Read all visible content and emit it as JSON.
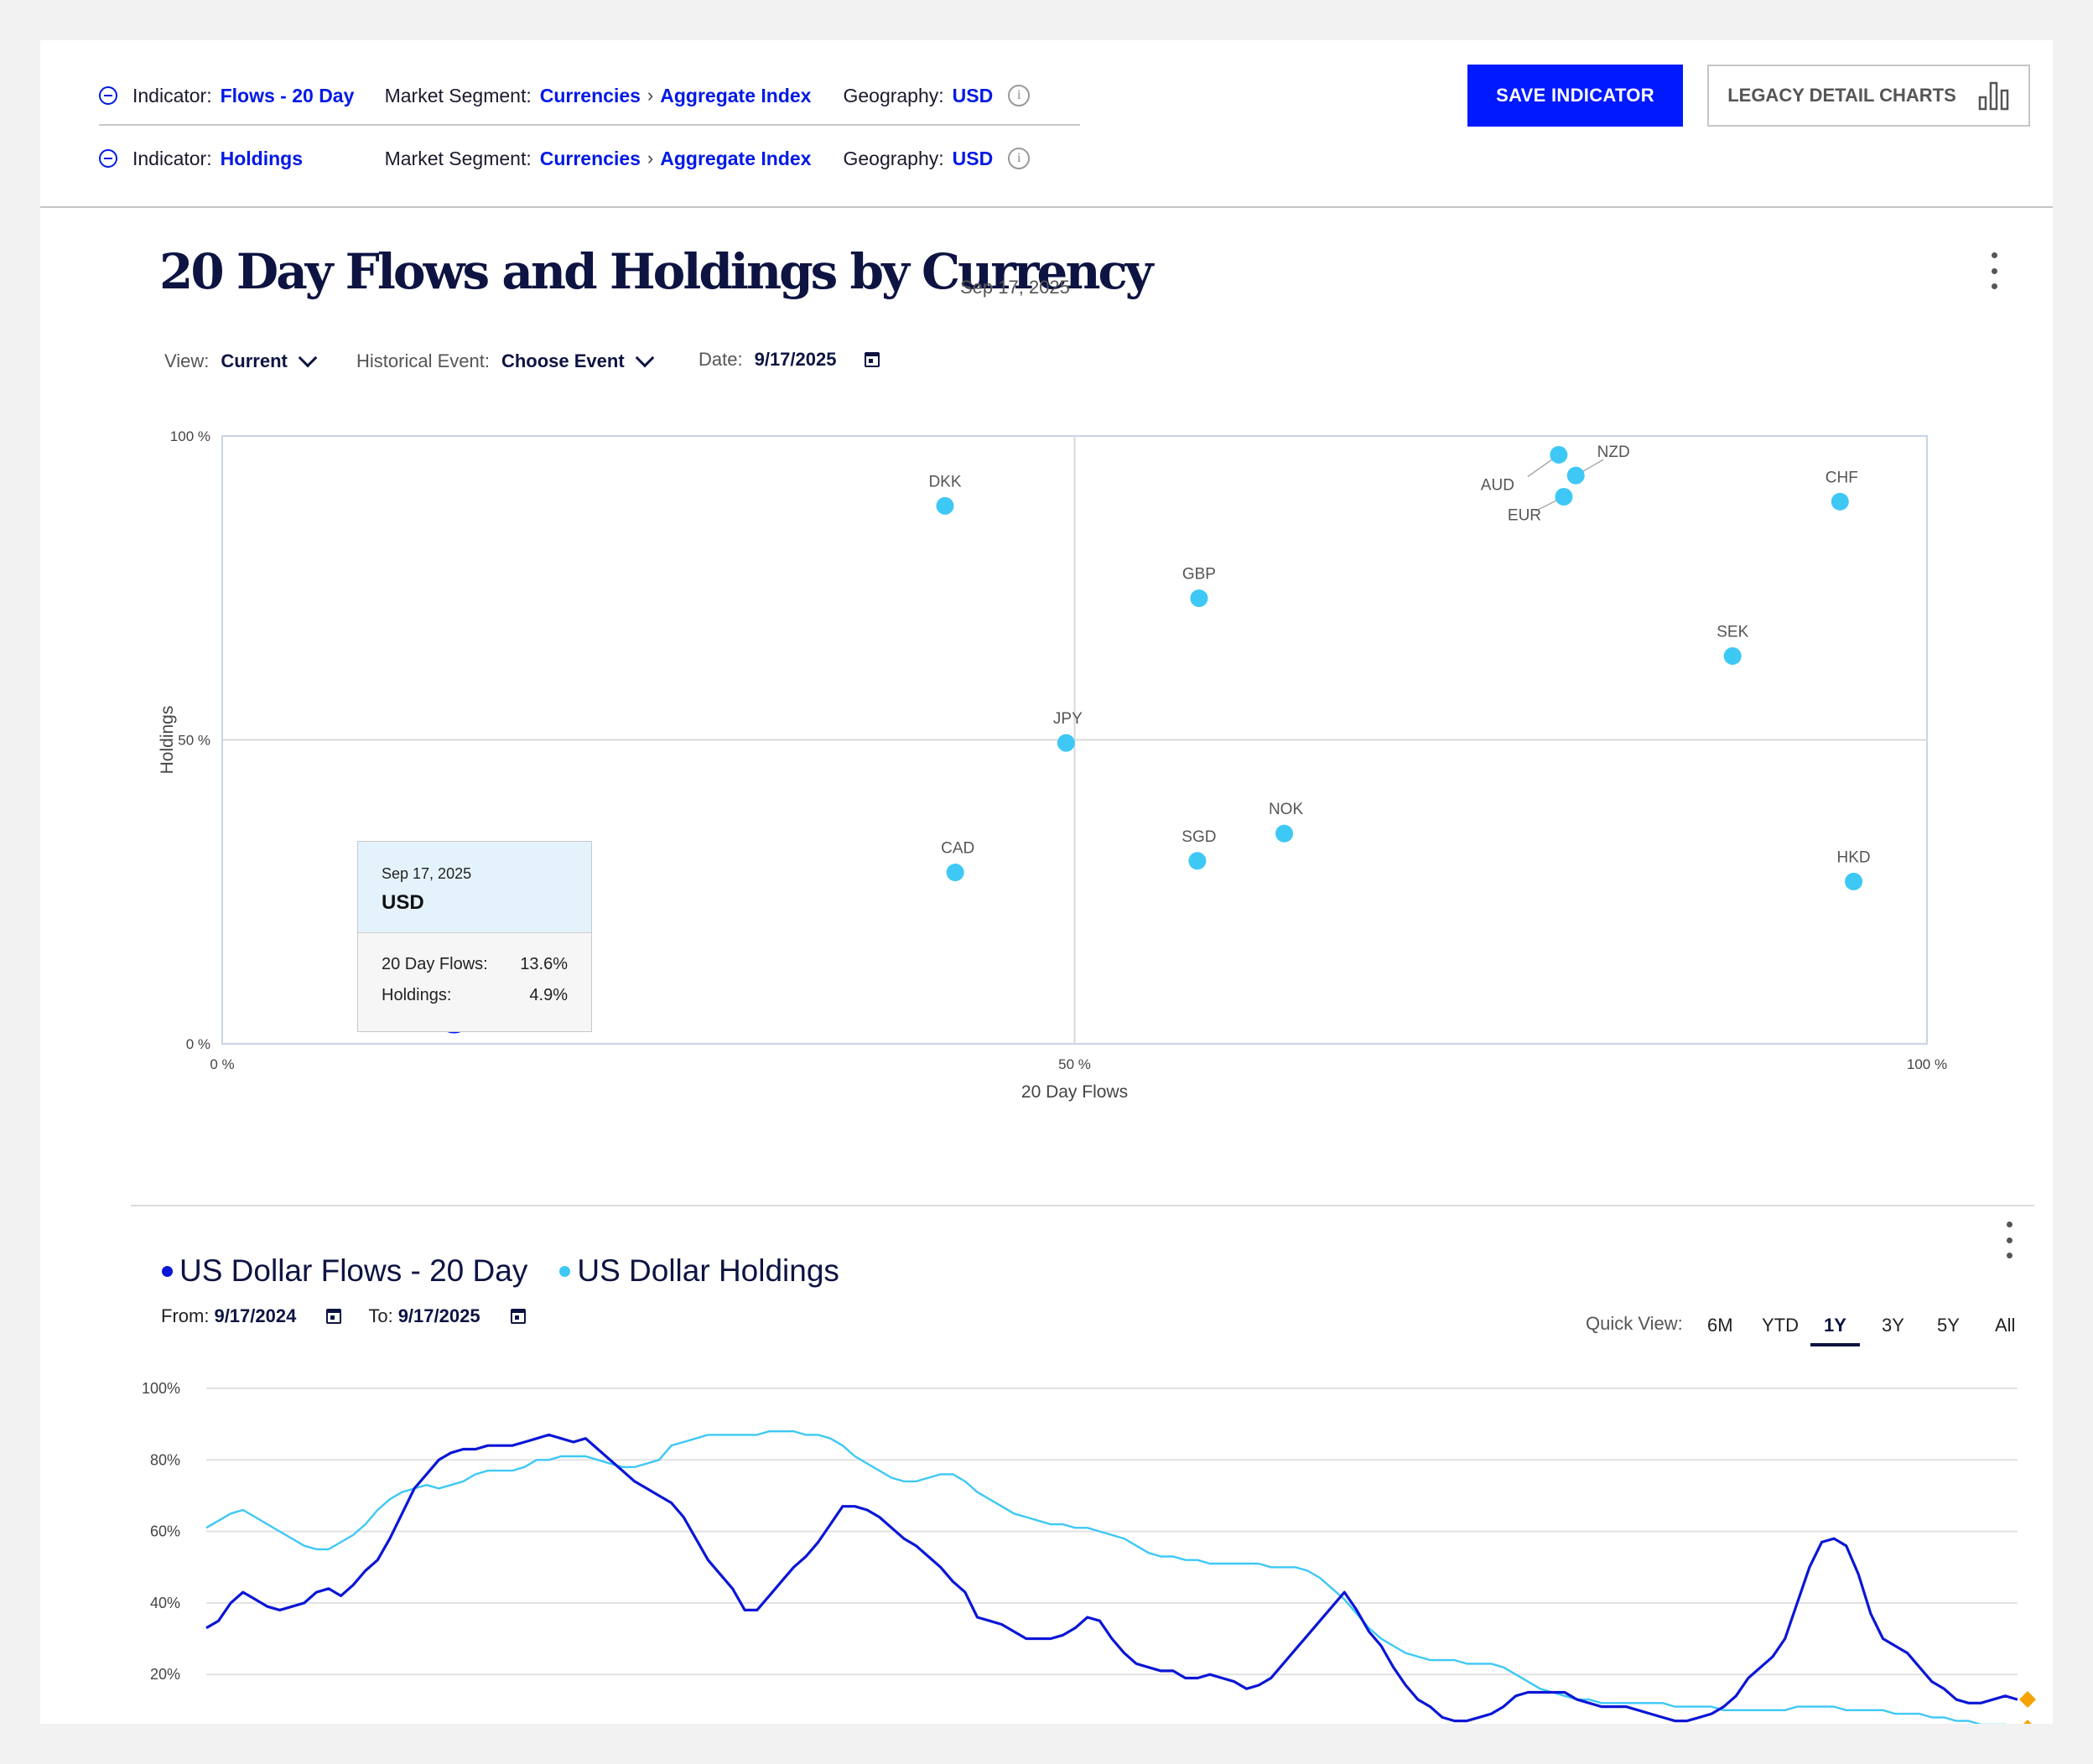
{
  "indicators": [
    {
      "indicator_label": "Indicator:",
      "indicator": "Flows - 20 Day",
      "segment_label": "Market Segment:",
      "segment": "Currencies",
      "segment_sub": "Aggregate Index",
      "geo_label": "Geography:",
      "geo": "USD"
    },
    {
      "indicator_label": "Indicator:",
      "indicator": "Holdings",
      "segment_label": "Market Segment:",
      "segment": "Currencies",
      "segment_sub": "Aggregate Index",
      "geo_label": "Geography:",
      "geo": "USD"
    }
  ],
  "buttons": {
    "save": "SAVE INDICATOR",
    "legacy": "LEGACY DETAIL CHARTS"
  },
  "scatter_section": {
    "title": "20 Day Flows and Holdings by Currency",
    "date": "Sep 17, 2025",
    "view_label": "View:",
    "view_value": "Current",
    "event_label": "Historical Event:",
    "event_value": "Choose Event",
    "date_label": "Date:",
    "date_value": "9/17/2025"
  },
  "tooltip": {
    "date": "Sep 17, 2025",
    "currency": "USD",
    "flows_label": "20 Day Flows:",
    "flows_value": "13.6%",
    "holdings_label": "Holdings:",
    "holdings_value": "4.9%"
  },
  "line_section": {
    "series1": "US Dollar Flows - 20 Day",
    "series2": "US Dollar Holdings",
    "from_label": "From:",
    "from_value": "9/17/2024",
    "to_label": "To:",
    "to_value": "9/17/2025",
    "quick_view_label": "Quick View:",
    "quick_views": [
      "6M",
      "YTD",
      "1Y",
      "3Y",
      "5Y",
      "All"
    ],
    "quick_view_selected": "1Y"
  },
  "colors": {
    "accent": "#0019ff",
    "flows": "#0b16d6",
    "holdings": "#3ec8f5",
    "marker": "#f5a300"
  },
  "chart_data": [
    {
      "type": "scatter",
      "xlabel": "20 Day Flows",
      "ylabel": "Holdings",
      "xlim": [
        0,
        100
      ],
      "ylim": [
        0,
        100
      ],
      "x_ticks": [
        "0 %",
        "50 %",
        "100 %"
      ],
      "y_ticks": [
        "0 %",
        "50 %",
        "100 %"
      ],
      "grid": "quadrant lines at 50%",
      "points": [
        {
          "label": "USD",
          "x": 13.6,
          "y": 4.9,
          "highlighted": true
        },
        {
          "label": "DKK",
          "x": 42.4,
          "y": 88.5
        },
        {
          "label": "GBP",
          "x": 57.3,
          "y": 73.3
        },
        {
          "label": "JPY",
          "x": 49.5,
          "y": 49.5
        },
        {
          "label": "CAD",
          "x": 43.0,
          "y": 28.2
        },
        {
          "label": "SGD",
          "x": 57.2,
          "y": 30.1
        },
        {
          "label": "NOK",
          "x": 62.3,
          "y": 34.6
        },
        {
          "label": "AUD",
          "x": 78.4,
          "y": 96.9
        },
        {
          "label": "NZD",
          "x": 79.4,
          "y": 93.5
        },
        {
          "label": "EUR",
          "x": 78.7,
          "y": 90.0
        },
        {
          "label": "CHF",
          "x": 94.9,
          "y": 89.2
        },
        {
          "label": "SEK",
          "x": 88.6,
          "y": 63.8
        },
        {
          "label": "HKD",
          "x": 95.7,
          "y": 26.7
        }
      ]
    },
    {
      "type": "line",
      "ylim": [
        0,
        100
      ],
      "y_ticks": [
        "100%",
        "80%",
        "60%",
        "40%",
        "20%"
      ],
      "x_range": [
        "9/17/2024",
        "9/17/2025"
      ],
      "series": [
        {
          "name": "US Dollar Flows - 20 Day",
          "values": [
            33,
            35,
            40,
            43,
            41,
            39,
            38,
            39,
            40,
            43,
            44,
            42,
            45,
            49,
            52,
            58,
            65,
            72,
            76,
            80,
            82,
            83,
            83,
            84,
            84,
            84,
            85,
            86,
            87,
            86,
            85,
            86,
            83,
            80,
            77,
            74,
            72,
            70,
            68,
            64,
            58,
            52,
            48,
            44,
            38,
            38,
            42,
            46,
            50,
            53,
            57,
            62,
            67,
            67,
            66,
            64,
            61,
            58,
            56,
            53,
            50,
            46,
            43,
            36,
            35,
            34,
            32,
            30,
            30,
            30,
            31,
            33,
            36,
            35,
            30,
            26,
            23,
            22,
            21,
            21,
            19,
            19,
            20,
            19,
            18,
            16,
            17,
            19,
            23,
            27,
            31,
            35,
            39,
            43,
            38,
            32,
            28,
            22,
            17,
            13,
            11,
            8,
            7,
            7,
            8,
            9,
            11,
            14,
            15,
            15,
            15,
            15,
            13,
            12,
            11,
            11,
            11,
            10,
            9,
            8,
            7,
            7,
            8,
            9,
            11,
            14,
            19,
            22,
            25,
            30,
            40,
            50,
            57,
            58,
            56,
            48,
            37,
            30,
            28,
            26,
            22,
            18,
            16,
            13,
            12,
            12,
            13,
            14,
            13
          ]
        },
        {
          "name": "US Dollar Holdings",
          "values": [
            61,
            63,
            65,
            66,
            64,
            62,
            60,
            58,
            56,
            55,
            55,
            57,
            59,
            62,
            66,
            69,
            71,
            72,
            73,
            72,
            73,
            74,
            76,
            77,
            77,
            77,
            78,
            80,
            80,
            81,
            81,
            81,
            80,
            79,
            78,
            78,
            79,
            80,
            84,
            85,
            86,
            87,
            87,
            87,
            87,
            87,
            88,
            88,
            88,
            87,
            87,
            86,
            84,
            81,
            79,
            77,
            75,
            74,
            74,
            75,
            76,
            76,
            74,
            71,
            69,
            67,
            65,
            64,
            63,
            62,
            62,
            61,
            61,
            60,
            59,
            58,
            56,
            54,
            53,
            53,
            52,
            52,
            51,
            51,
            51,
            51,
            51,
            50,
            50,
            50,
            49,
            47,
            44,
            41,
            37,
            33,
            30,
            28,
            26,
            25,
            24,
            24,
            24,
            23,
            23,
            23,
            22,
            20,
            18,
            16,
            15,
            14,
            13,
            13,
            12,
            12,
            12,
            12,
            12,
            12,
            11,
            11,
            11,
            11,
            10,
            10,
            10,
            10,
            10,
            10,
            11,
            11,
            11,
            11,
            10,
            10,
            10,
            10,
            9,
            9,
            9,
            8,
            8,
            7,
            7,
            6,
            6,
            6,
            5
          ]
        }
      ]
    }
  ]
}
